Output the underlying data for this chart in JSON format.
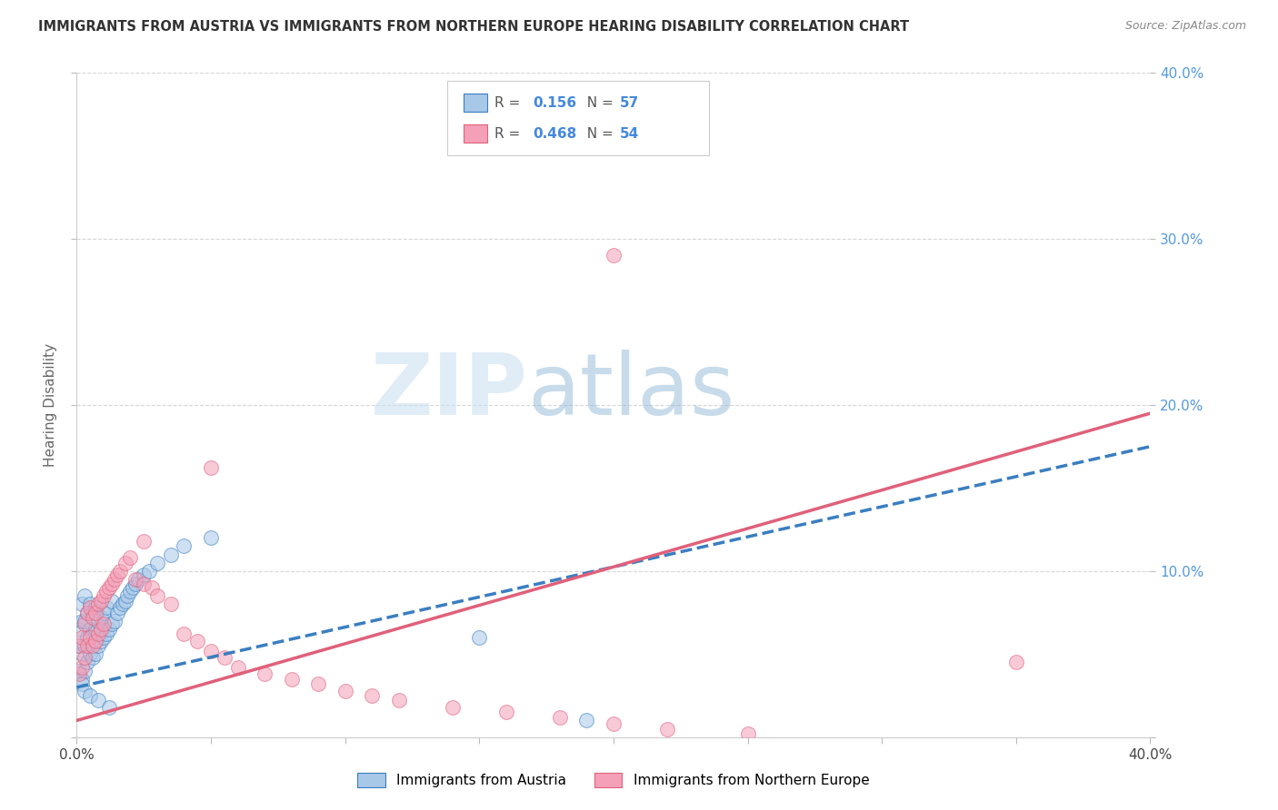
{
  "title": "IMMIGRANTS FROM AUSTRIA VS IMMIGRANTS FROM NORTHERN EUROPE HEARING DISABILITY CORRELATION CHART",
  "source": "Source: ZipAtlas.com",
  "ylabel": "Hearing Disability",
  "xlim": [
    0,
    0.4
  ],
  "ylim": [
    0,
    0.4
  ],
  "series1_label": "Immigrants from Austria",
  "series2_label": "Immigrants from Northern Europe",
  "R1": "0.156",
  "N1": "57",
  "R2": "0.468",
  "N2": "54",
  "color1": "#a8c8e8",
  "color2": "#f4a0b8",
  "line1_color": "#3a7ec0",
  "line2_color": "#e0607a",
  "watermark_zip": "ZIP",
  "watermark_atlas": "atlas",
  "series1_x": [
    0.001,
    0.001,
    0.001,
    0.002,
    0.002,
    0.002,
    0.002,
    0.003,
    0.003,
    0.003,
    0.003,
    0.004,
    0.004,
    0.004,
    0.005,
    0.005,
    0.005,
    0.006,
    0.006,
    0.006,
    0.007,
    0.007,
    0.007,
    0.008,
    0.008,
    0.009,
    0.009,
    0.01,
    0.01,
    0.011,
    0.011,
    0.012,
    0.013,
    0.013,
    0.014,
    0.015,
    0.016,
    0.017,
    0.018,
    0.019,
    0.02,
    0.021,
    0.022,
    0.023,
    0.025,
    0.027,
    0.03,
    0.035,
    0.04,
    0.05,
    0.002,
    0.003,
    0.005,
    0.008,
    0.012,
    0.15,
    0.19
  ],
  "series1_y": [
    0.04,
    0.055,
    0.065,
    0.035,
    0.05,
    0.07,
    0.08,
    0.04,
    0.055,
    0.07,
    0.085,
    0.045,
    0.06,
    0.075,
    0.05,
    0.065,
    0.08,
    0.048,
    0.062,
    0.075,
    0.05,
    0.065,
    0.078,
    0.055,
    0.07,
    0.058,
    0.072,
    0.06,
    0.075,
    0.062,
    0.078,
    0.065,
    0.068,
    0.082,
    0.07,
    0.075,
    0.078,
    0.08,
    0.082,
    0.085,
    0.088,
    0.09,
    0.092,
    0.095,
    0.098,
    0.1,
    0.105,
    0.11,
    0.115,
    0.12,
    0.032,
    0.028,
    0.025,
    0.022,
    0.018,
    0.06,
    0.01
  ],
  "series2_x": [
    0.001,
    0.001,
    0.002,
    0.002,
    0.003,
    0.003,
    0.004,
    0.004,
    0.005,
    0.005,
    0.006,
    0.006,
    0.007,
    0.007,
    0.008,
    0.008,
    0.009,
    0.009,
    0.01,
    0.01,
    0.011,
    0.012,
    0.013,
    0.014,
    0.015,
    0.016,
    0.018,
    0.02,
    0.022,
    0.025,
    0.028,
    0.03,
    0.035,
    0.04,
    0.045,
    0.05,
    0.055,
    0.06,
    0.07,
    0.08,
    0.09,
    0.1,
    0.11,
    0.12,
    0.14,
    0.16,
    0.18,
    0.2,
    0.22,
    0.25,
    0.025,
    0.05,
    0.2,
    0.35
  ],
  "series2_y": [
    0.038,
    0.055,
    0.042,
    0.06,
    0.048,
    0.068,
    0.055,
    0.075,
    0.06,
    0.078,
    0.055,
    0.072,
    0.058,
    0.075,
    0.062,
    0.08,
    0.065,
    0.082,
    0.068,
    0.085,
    0.088,
    0.09,
    0.092,
    0.095,
    0.098,
    0.1,
    0.105,
    0.108,
    0.095,
    0.092,
    0.09,
    0.085,
    0.08,
    0.062,
    0.058,
    0.052,
    0.048,
    0.042,
    0.038,
    0.035,
    0.032,
    0.028,
    0.025,
    0.022,
    0.018,
    0.015,
    0.012,
    0.008,
    0.005,
    0.002,
    0.118,
    0.162,
    0.29,
    0.045
  ],
  "line1_start_y": 0.03,
  "line1_end_y": 0.175,
  "line2_start_y": 0.01,
  "line2_end_y": 0.195,
  "ytick_positions": [
    0.0,
    0.1,
    0.2,
    0.3,
    0.4
  ],
  "ytick_labels": [
    "",
    "10.0%",
    "20.0%",
    "30.0%",
    "40.0%"
  ]
}
